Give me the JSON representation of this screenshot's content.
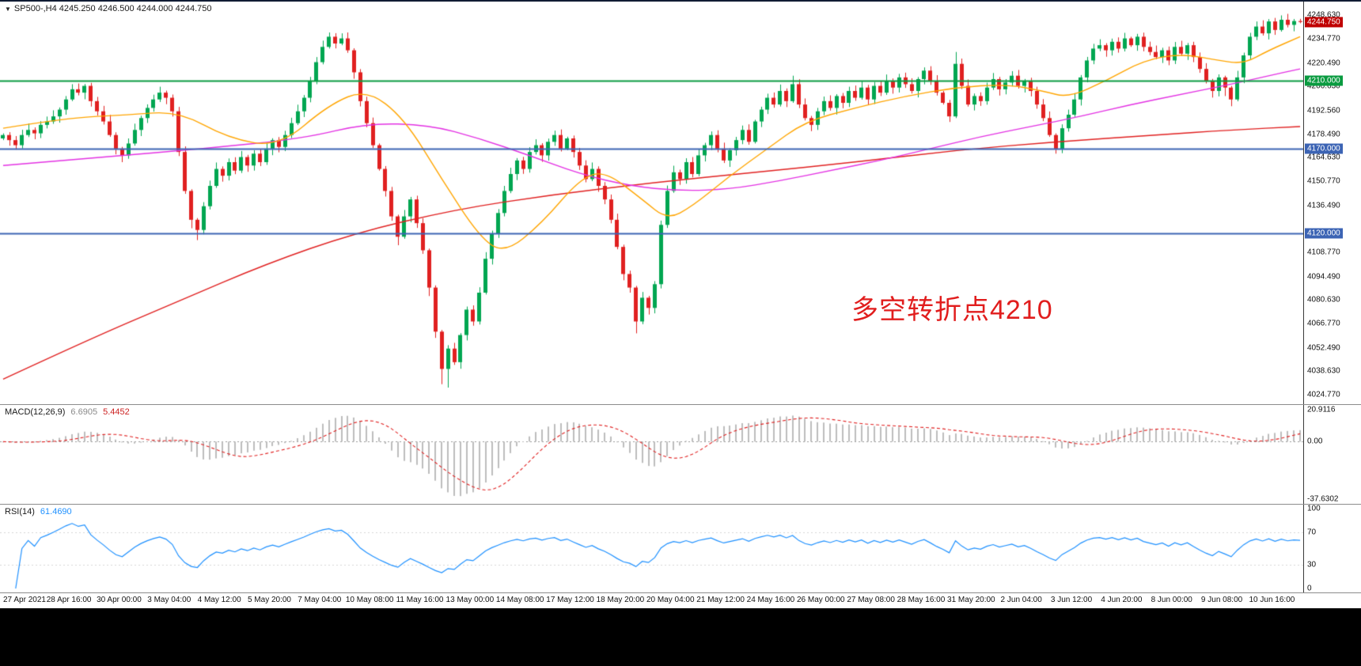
{
  "header": {
    "collapse_triangle": "▼",
    "symbol_info": "SP500-,H4  4245.250 4246.500 4244.000 4244.750"
  },
  "main": {
    "annotation": {
      "text": "多空转折点4210",
      "color": "#e11d1d"
    },
    "price_axis": {
      "ticks": [
        4248.63,
        4234.77,
        4220.49,
        4206.63,
        4192.56,
        4178.49,
        4164.63,
        4150.77,
        4136.49,
        4108.77,
        4094.49,
        4080.63,
        4066.77,
        4052.49,
        4038.63,
        4024.77
      ],
      "tags": [
        {
          "price": 4244.75,
          "label": "4244.750",
          "bg": "#c00000"
        },
        {
          "price": 4210.0,
          "label": "4210.000",
          "bg": "#0a9b40"
        },
        {
          "price": 4170.0,
          "label": "4170.000",
          "bg": "#3c64b4"
        },
        {
          "price": 4120.0,
          "label": "4120.000",
          "bg": "#3c64b4"
        }
      ]
    }
  },
  "chart_data": {
    "type": "candlestick",
    "symbol": "SP500-",
    "timeframe": "H4",
    "ohlc_current": {
      "open": 4245.25,
      "high": 4246.5,
      "low": 4244.0,
      "close": 4244.75
    },
    "ylim": [
      4022,
      4253
    ],
    "first_open": 4176,
    "wick_base": 1.0,
    "closes": [
      4178,
      4175,
      4172,
      4178,
      4181,
      4179,
      4184,
      4186,
      4189,
      4193,
      4199,
      4205,
      4203,
      4207,
      4198,
      4192,
      4186,
      4178,
      4170,
      4166,
      4173,
      4181,
      4188,
      4194,
      4199,
      4203,
      4200,
      4192,
      4168,
      4145,
      4128,
      4122,
      4136,
      4148,
      4158,
      4154,
      4162,
      4157,
      4165,
      4160,
      4167,
      4162,
      4170,
      4175,
      4171,
      4178,
      4185,
      4192,
      4200,
      4210,
      4221,
      4230,
      4236,
      4232,
      4235,
      4228,
      4215,
      4198,
      4185,
      4172,
      4158,
      4145,
      4130,
      4118,
      4130,
      4140,
      4126,
      4110,
      4088,
      4062,
      4040,
      4052,
      4044,
      4060,
      4075,
      4068,
      4085,
      4105,
      4120,
      4132,
      4145,
      4155,
      4163,
      4158,
      4168,
      4172,
      4166,
      4174,
      4178,
      4170,
      4176,
      4168,
      4160,
      4152,
      4158,
      4148,
      4140,
      4128,
      4112,
      4096,
      4088,
      4068,
      4082,
      4076,
      4090,
      4125,
      4145,
      4156,
      4152,
      4162,
      4155,
      4166,
      4172,
      4178,
      4170,
      4163,
      4169,
      4175,
      4181,
      4174,
      4186,
      4193,
      4200,
      4196,
      4204,
      4198,
      4208,
      4196,
      4188,
      4184,
      4192,
      4198,
      4194,
      4201,
      4197,
      4204,
      4200,
      4206,
      4199,
      4207,
      4203,
      4210,
      4206,
      4212,
      4208,
      4204,
      4211,
      4216,
      4210,
      4203,
      4197,
      4189,
      4220,
      4207,
      4196,
      4201,
      4198,
      4206,
      4211,
      4205,
      4209,
      4213,
      4207,
      4210,
      4204,
      4196,
      4188,
      4178,
      4170,
      4182,
      4190,
      4199,
      4212,
      4222,
      4229,
      4231,
      4228,
      4233,
      4229,
      4235,
      4231,
      4236,
      4230,
      4227,
      4224,
      4228,
      4222,
      4230,
      4226,
      4231,
      4224,
      4217,
      4210,
      4204,
      4212,
      4206,
      4199,
      4212,
      4225,
      4236,
      4242,
      4238,
      4245,
      4240,
      4246,
      4243,
      4245.25,
      4244.75
    ],
    "wick_overrides": {
      "11": [
        3,
        1
      ],
      "19": [
        1,
        4
      ],
      "30": [
        1,
        5
      ],
      "31": [
        1,
        6
      ],
      "52": [
        2.5,
        1
      ],
      "54": [
        3,
        1
      ],
      "63": [
        1,
        5
      ],
      "68": [
        1,
        5
      ],
      "70": [
        1,
        9
      ],
      "71": [
        2,
        11
      ],
      "101": [
        1,
        7
      ],
      "126": [
        5,
        1
      ],
      "152": [
        7,
        1
      ],
      "168": [
        1,
        3
      ],
      "195": [
        1,
        5
      ],
      "196": [
        1,
        4
      ],
      "204": [
        2.6,
        1
      ],
      "207": [
        1.3,
        0.8
      ]
    },
    "colors": {
      "up": "#00a651",
      "down": "#e02020",
      "background": "#ffffff"
    },
    "hlines": [
      {
        "price": 4210.0,
        "color": "#0a9b40",
        "width": 2
      },
      {
        "price": 4170.0,
        "color": "#3c64b4",
        "width": 2
      },
      {
        "price": 4120.0,
        "color": "#3c64b4",
        "width": 2
      }
    ],
    "moving_averages": [
      {
        "name": "ma-slow-red",
        "color": "#e02020",
        "points": [
          [
            0,
            4034
          ],
          [
            14,
            4058
          ],
          [
            28,
            4080
          ],
          [
            42,
            4102
          ],
          [
            56,
            4120
          ],
          [
            72,
            4134
          ],
          [
            88,
            4143
          ],
          [
            104,
            4150
          ],
          [
            120,
            4156
          ],
          [
            136,
            4162
          ],
          [
            152,
            4169
          ],
          [
            168,
            4174
          ],
          [
            184,
            4178
          ],
          [
            196,
            4181
          ],
          [
            207,
            4183
          ]
        ]
      },
      {
        "name": "ma-mid-magenta",
        "color": "#e332e3",
        "points": [
          [
            0,
            4160
          ],
          [
            16,
            4165
          ],
          [
            32,
            4170
          ],
          [
            48,
            4176
          ],
          [
            58,
            4185
          ],
          [
            68,
            4184
          ],
          [
            76,
            4176
          ],
          [
            84,
            4166
          ],
          [
            92,
            4155
          ],
          [
            100,
            4148
          ],
          [
            108,
            4145
          ],
          [
            116,
            4146
          ],
          [
            124,
            4151
          ],
          [
            132,
            4157
          ],
          [
            140,
            4163
          ],
          [
            148,
            4170
          ],
          [
            156,
            4177
          ],
          [
            164,
            4183
          ],
          [
            172,
            4189
          ],
          [
            180,
            4196
          ],
          [
            188,
            4202
          ],
          [
            196,
            4208
          ],
          [
            202,
            4213
          ],
          [
            207,
            4217
          ]
        ]
      },
      {
        "name": "ma-fast-orange",
        "color": "#ffa500",
        "points": [
          [
            0,
            4182
          ],
          [
            10,
            4188
          ],
          [
            20,
            4190
          ],
          [
            28,
            4192
          ],
          [
            36,
            4176
          ],
          [
            44,
            4171
          ],
          [
            52,
            4196
          ],
          [
            58,
            4205
          ],
          [
            64,
            4188
          ],
          [
            70,
            4152
          ],
          [
            76,
            4118
          ],
          [
            80,
            4108
          ],
          [
            86,
            4126
          ],
          [
            92,
            4152
          ],
          [
            96,
            4157
          ],
          [
            102,
            4140
          ],
          [
            106,
            4128
          ],
          [
            110,
            4136
          ],
          [
            116,
            4154
          ],
          [
            122,
            4170
          ],
          [
            128,
            4186
          ],
          [
            136,
            4194
          ],
          [
            144,
            4201
          ],
          [
            152,
            4206
          ],
          [
            160,
            4208
          ],
          [
            166,
            4204
          ],
          [
            170,
            4200
          ],
          [
            176,
            4210
          ],
          [
            182,
            4222
          ],
          [
            188,
            4226
          ],
          [
            194,
            4222
          ],
          [
            198,
            4220
          ],
          [
            202,
            4228
          ],
          [
            207,
            4236
          ]
        ]
      }
    ],
    "time_labels": [
      "27 Apr 2021",
      "28 Apr 16:00",
      "30 Apr 00:00",
      "3 May 04:00",
      "4 May 12:00",
      "5 May 20:00",
      "7 May 04:00",
      "10 May 08:00",
      "11 May 16:00",
      "13 May 00:00",
      "14 May 08:00",
      "17 May 12:00",
      "18 May 20:00",
      "20 May 04:00",
      "21 May 12:00",
      "24 May 16:00",
      "26 May 00:00",
      "27 May 08:00",
      "28 May 16:00",
      "31 May 20:00",
      "2 Jun 04:00",
      "3 Jun 12:00",
      "4 Jun 20:00",
      "8 Jun 00:00",
      "9 Jun 08:00",
      "10 Jun 16:00"
    ],
    "macd": {
      "label": "MACD(12,26,9)",
      "value1": "6.6905",
      "value2": "5.4452",
      "fast": 12,
      "slow": 26,
      "signal": 9,
      "ylim": [
        -37.6302,
        20.9116
      ],
      "axis_ticks": [
        {
          "v": 20.9116,
          "t": "20.9116"
        },
        {
          "v": 0,
          "t": "0.00"
        },
        {
          "v": -37.6302,
          "t": "-37.6302"
        }
      ],
      "hist_color": "#bdbdbd",
      "signal_color": "#e02020"
    },
    "rsi": {
      "label": "RSI(14)",
      "value": "61.4690",
      "period": 14,
      "ylim": [
        0,
        100
      ],
      "levels": [
        70,
        30
      ],
      "axis_ticks": [
        {
          "v": 100,
          "t": "100"
        },
        {
          "v": 70,
          "t": "70"
        },
        {
          "v": 30,
          "t": "30"
        },
        {
          "v": 0,
          "t": "0"
        }
      ],
      "color": "#1e90ff"
    }
  }
}
